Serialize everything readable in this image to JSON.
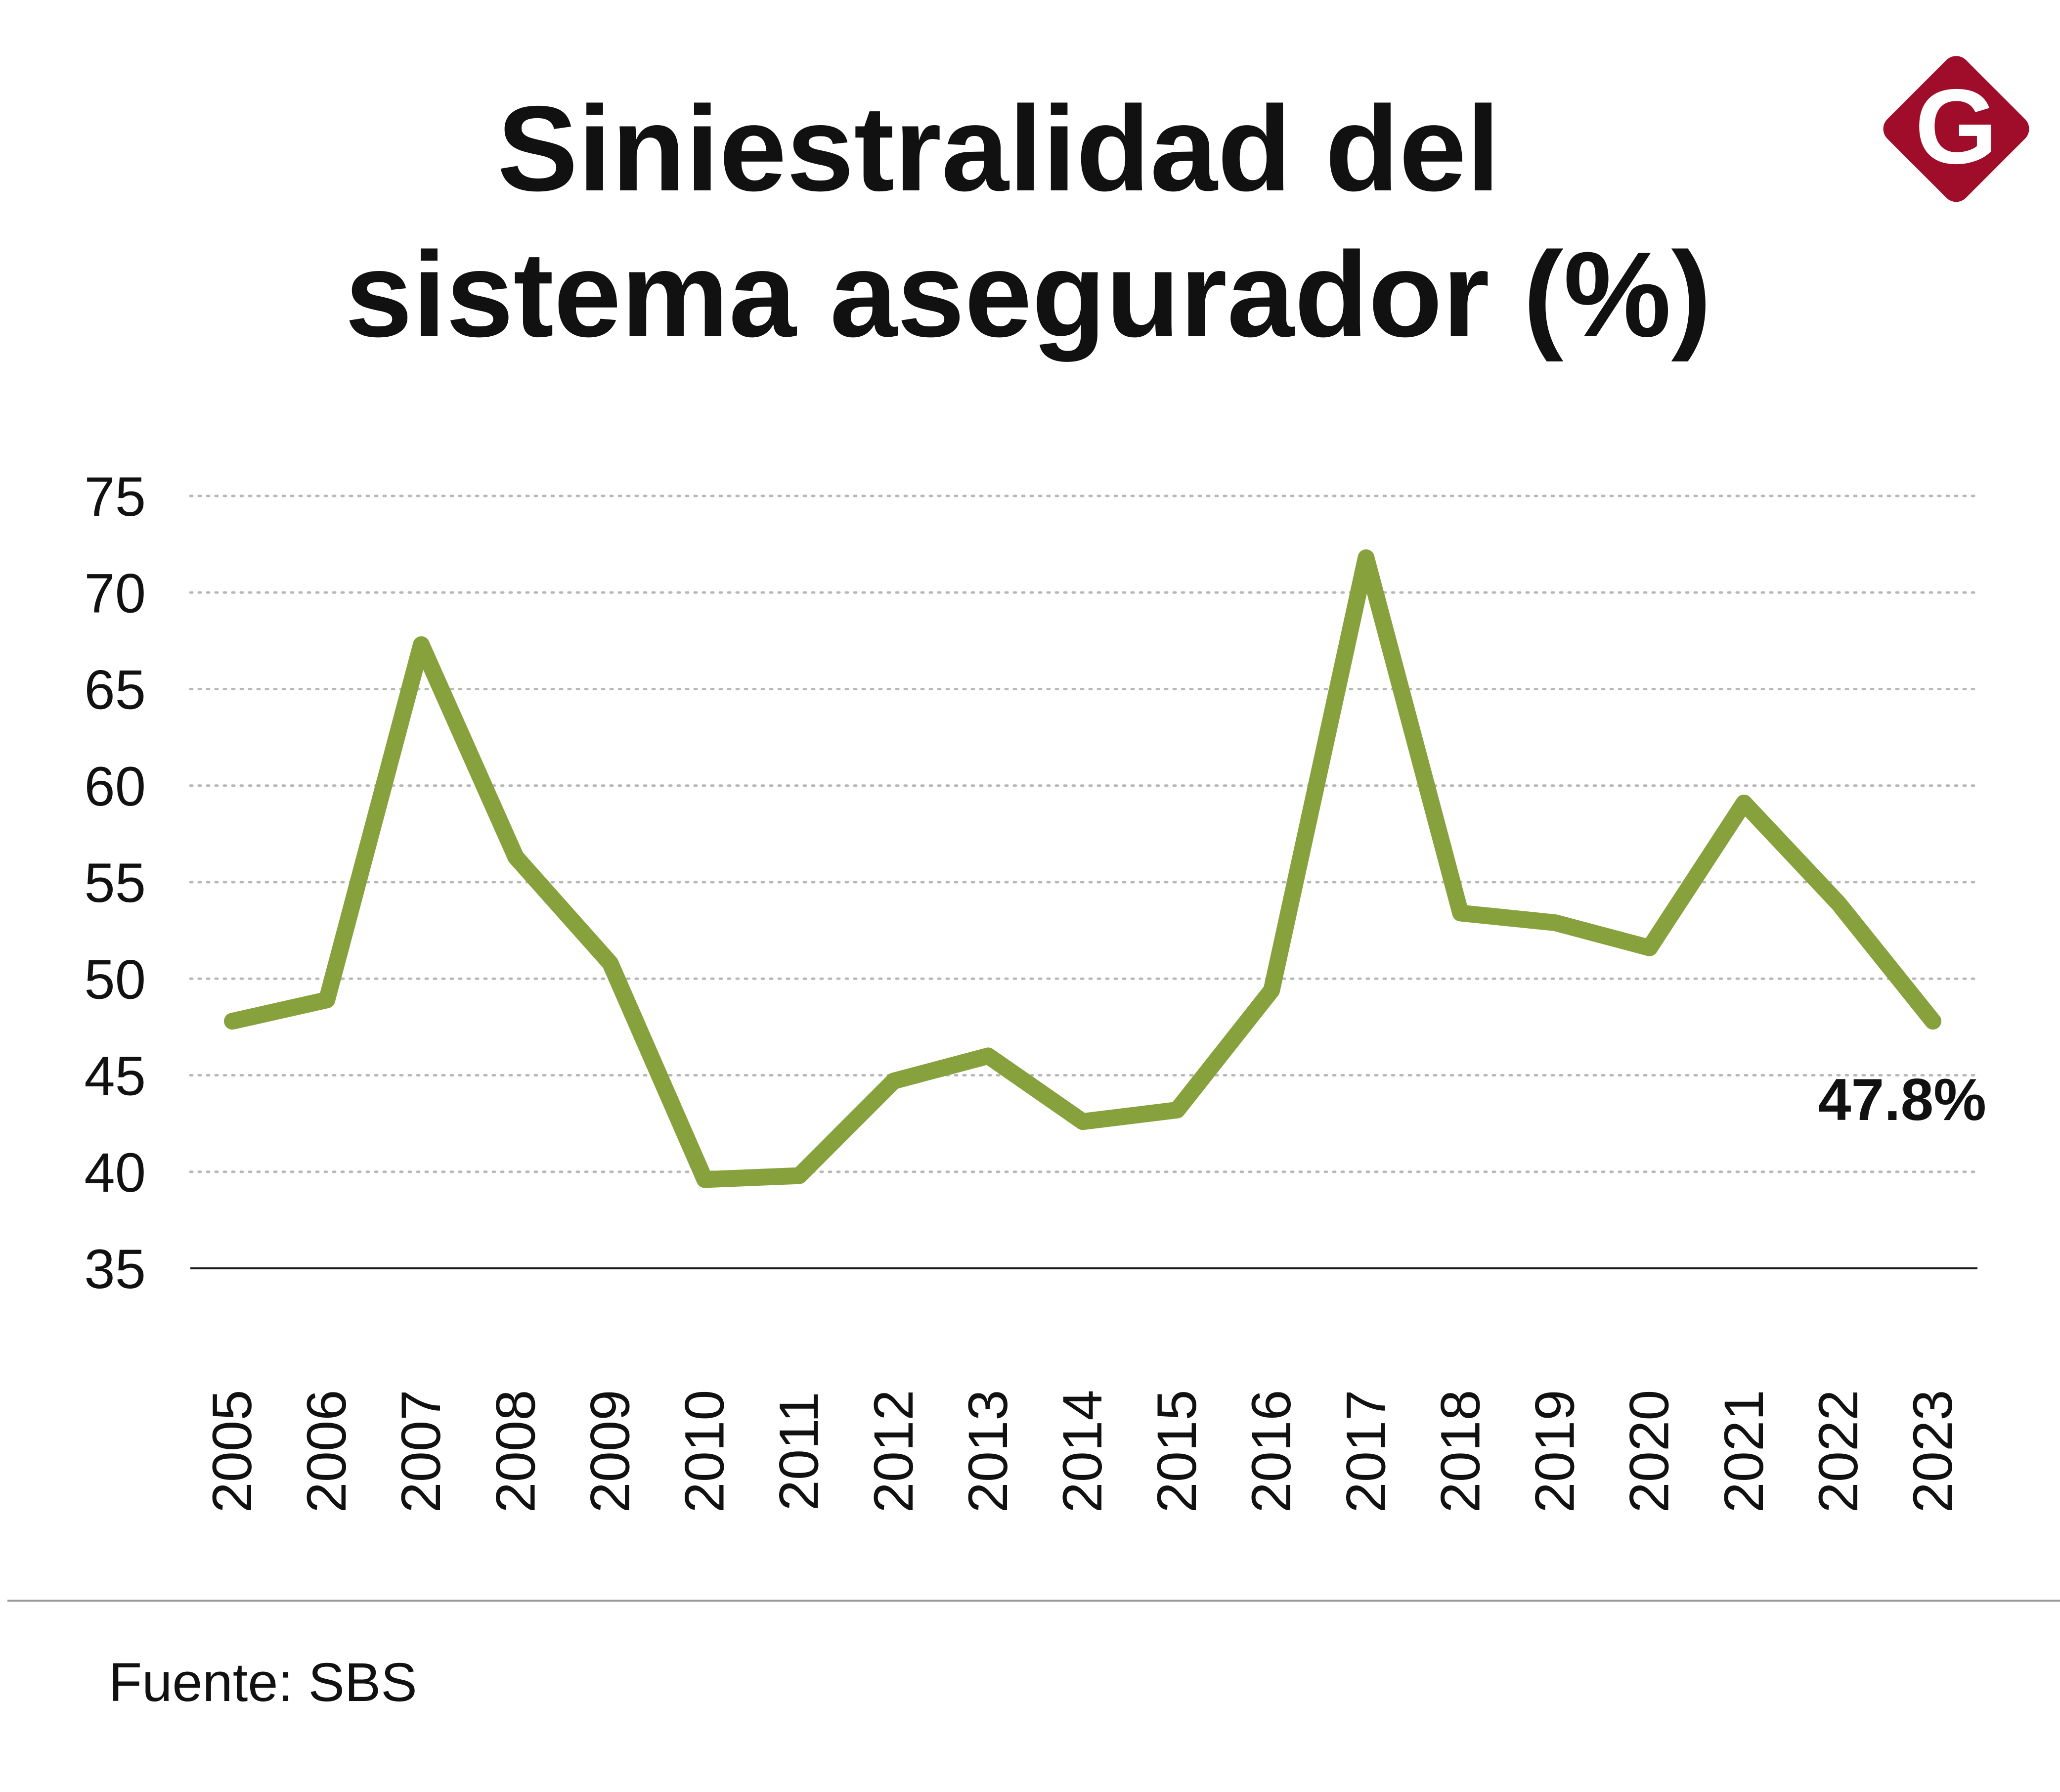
{
  "header": {
    "title_line1": "Siniestralidad del",
    "title_line2": "sistema asegurador (%)"
  },
  "logo": {
    "letter": "G",
    "color": "#a00d2a"
  },
  "footer": {
    "source": "Fuente: SBS"
  },
  "colors": {
    "line": "#87a23c",
    "grid": "#b8b8b8",
    "axis": "#1a1a1a",
    "text": "#111111"
  },
  "chart_data": {
    "type": "line",
    "title": "Siniestralidad del sistema asegurador (%)",
    "xlabel": "",
    "ylabel": "",
    "ylim": [
      35,
      75
    ],
    "yticks": [
      35,
      40,
      45,
      50,
      55,
      60,
      65,
      70,
      75
    ],
    "grid": true,
    "categories": [
      "2005",
      "2006",
      "2007",
      "2008",
      "2009",
      "2010",
      "2011",
      "2012",
      "2013",
      "2014",
      "2015",
      "2016",
      "2017",
      "2018",
      "2019",
      "2020",
      "2021",
      "2022",
      "2023"
    ],
    "series": [
      {
        "name": "Siniestralidad",
        "values": [
          47.8,
          48.9,
          67.3,
          56.3,
          50.8,
          39.6,
          39.8,
          44.7,
          46.0,
          42.6,
          43.2,
          49.4,
          71.8,
          53.4,
          52.9,
          51.6,
          59.1,
          53.9,
          47.8
        ]
      }
    ],
    "annotations": [
      {
        "label": "47.8%",
        "category": "2023"
      }
    ]
  }
}
